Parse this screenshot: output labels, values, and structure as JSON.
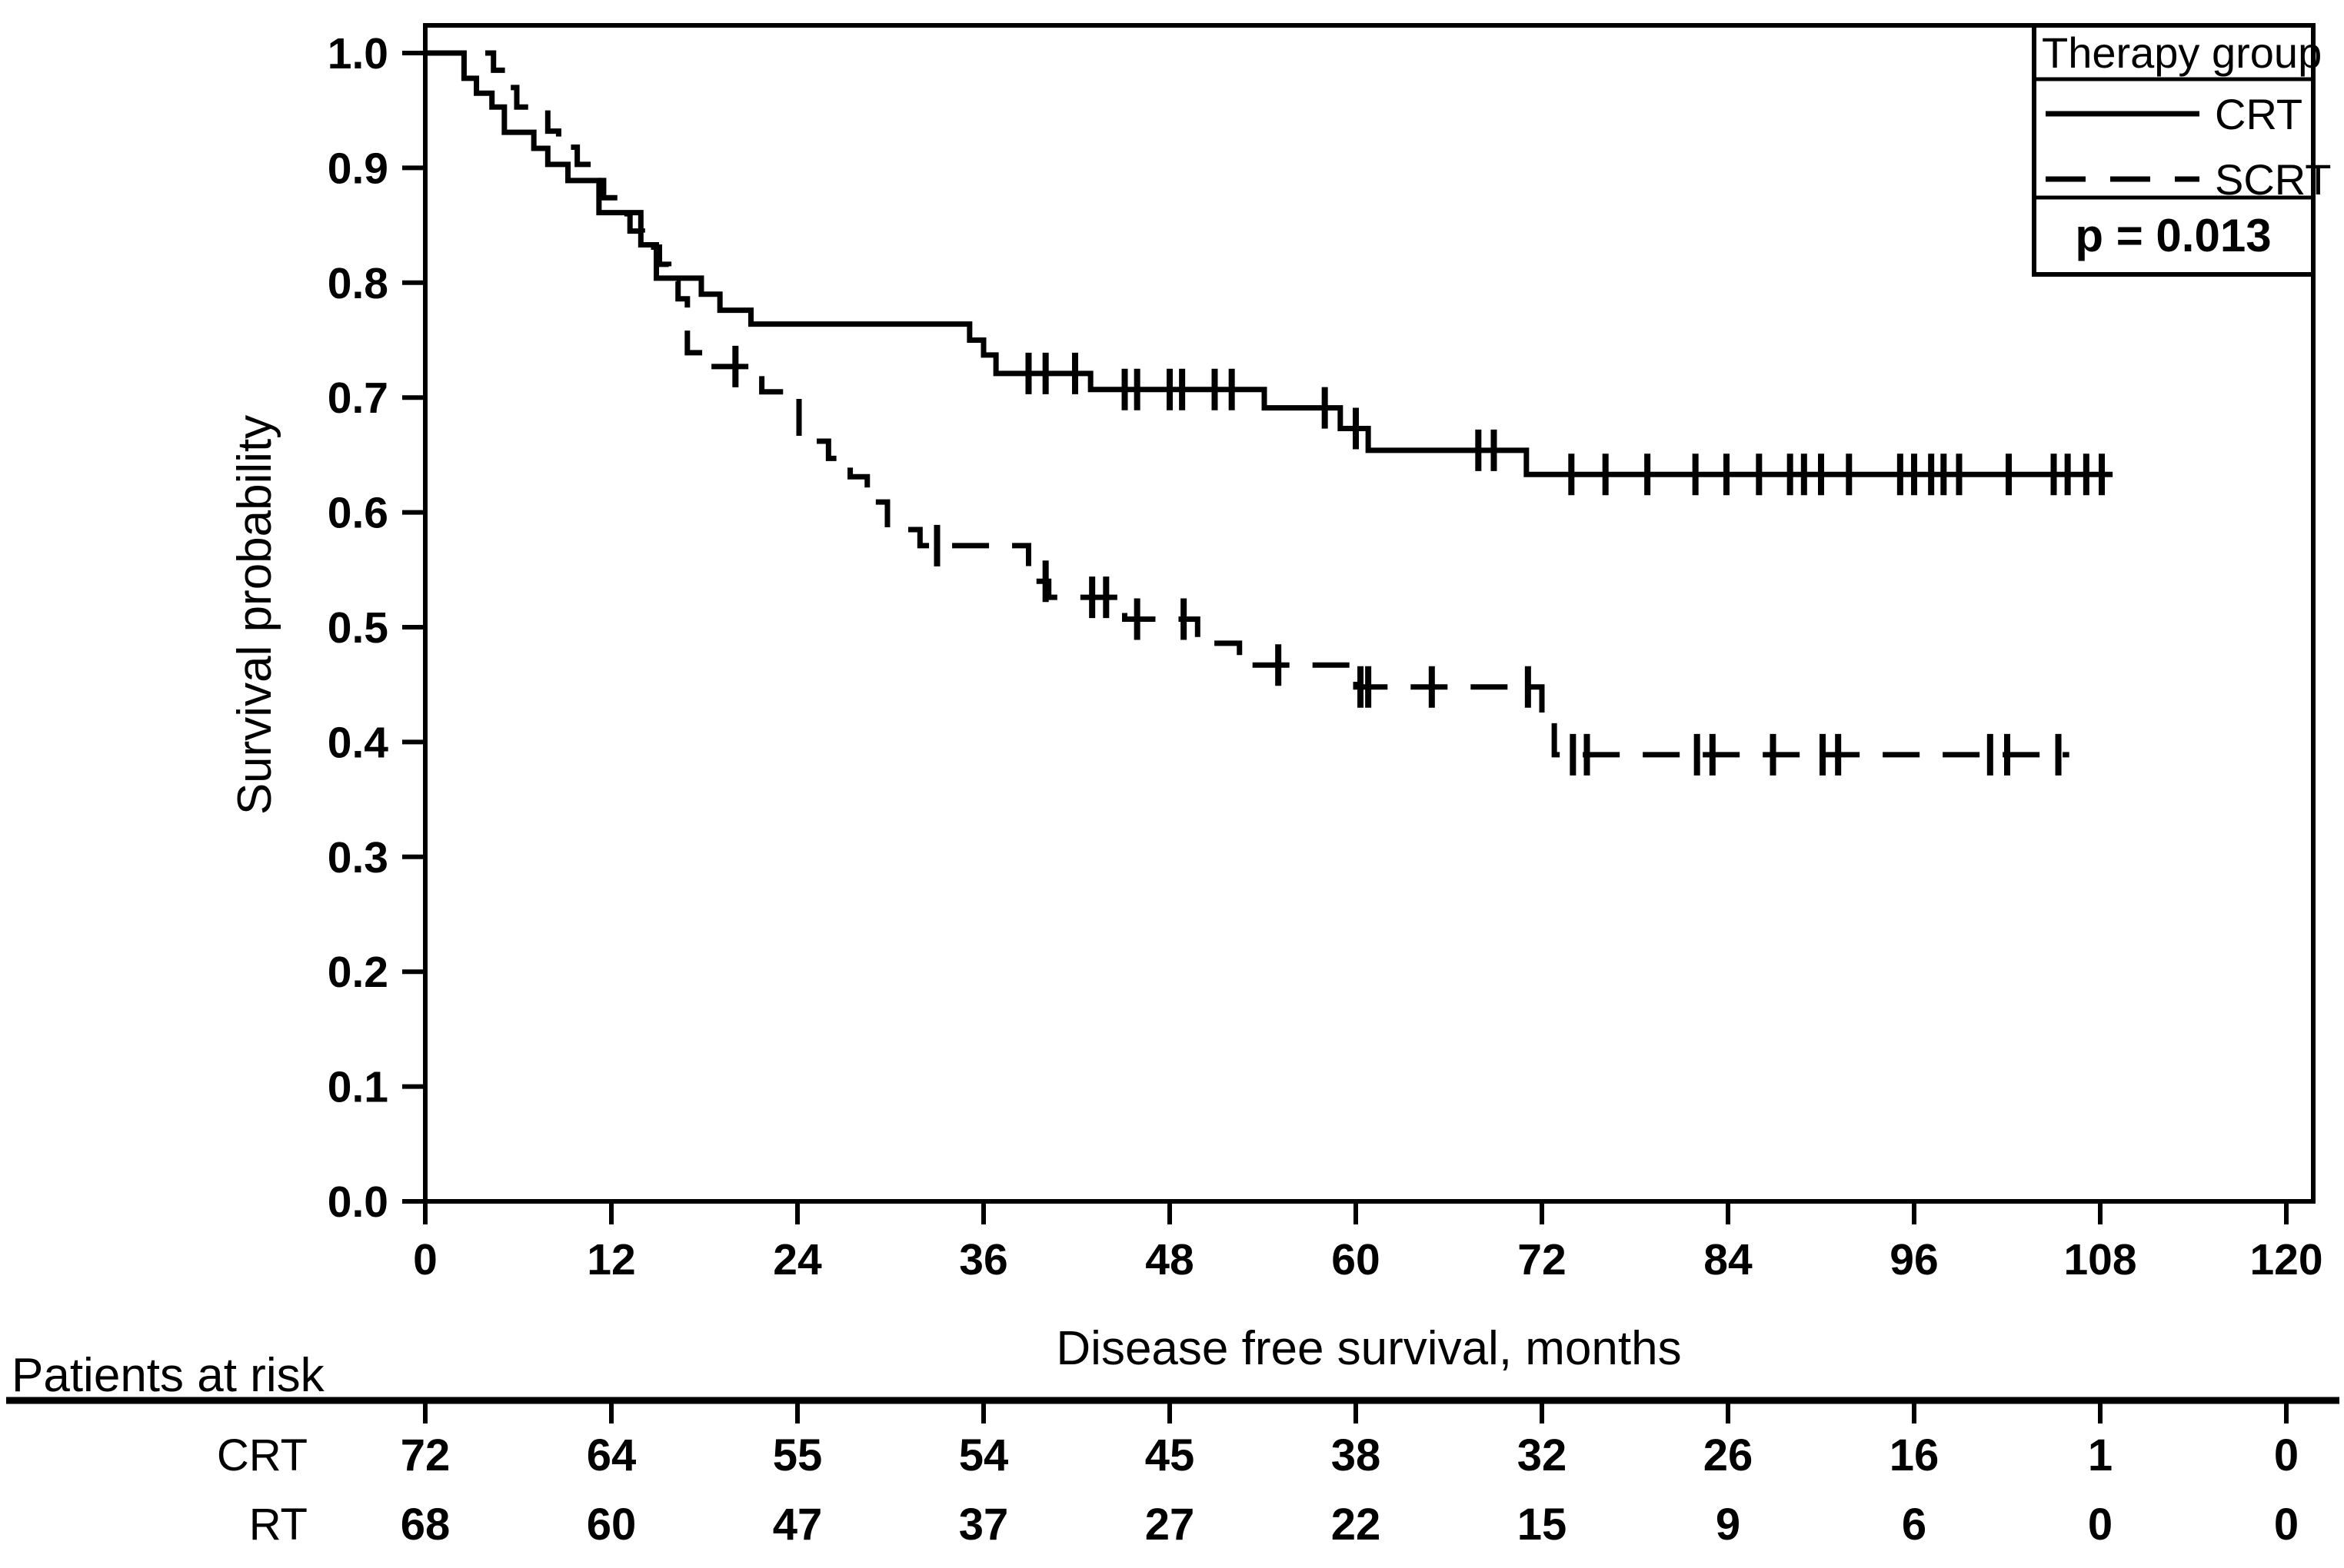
{
  "figure": {
    "background": "#ffffff",
    "foreground": "#000000",
    "y_axis_title": "Survival probability",
    "x_axis_title": "Disease free survival, months",
    "legend": {
      "title": "Therapy group",
      "entry_solid_label": "CRT",
      "entry_dashed_label": "SCRT",
      "p_value": "p = 0.013"
    },
    "risk_heading": "Patients at risk",
    "risk_row1_label": "CRT",
    "risk_row2_label": "RT"
  },
  "chart_data": {
    "type": "line",
    "subtype": "kaplan-meier-step",
    "title": "",
    "xlabel": "Disease free survival, months",
    "ylabel": "Survival probability",
    "xlim": [
      0,
      120
    ],
    "ylim": [
      0.0,
      1.0
    ],
    "x_ticks": [
      0,
      12,
      24,
      36,
      48,
      60,
      72,
      84,
      96,
      108,
      120
    ],
    "y_ticks": [
      1.0,
      0.9,
      0.8,
      0.7,
      0.6,
      0.5,
      0.4,
      0.3,
      0.2,
      0.1,
      0.0
    ],
    "grid": false,
    "legend_title": "Therapy group",
    "legend_position": "top-right",
    "p_value_text": "p = 0.013",
    "series": [
      {
        "name": "CRT",
        "style": "solid",
        "color": "#000000",
        "steps": [
          [
            0,
            1.0
          ],
          [
            2.5,
            0.978
          ],
          [
            3.3,
            0.965
          ],
          [
            4.3,
            0.953
          ],
          [
            5.1,
            0.931
          ],
          [
            7.0,
            0.917
          ],
          [
            7.9,
            0.903
          ],
          [
            9.2,
            0.889
          ],
          [
            11.2,
            0.861
          ],
          [
            13.9,
            0.833
          ],
          [
            14.9,
            0.804
          ],
          [
            17.8,
            0.79
          ],
          [
            19.0,
            0.776
          ],
          [
            21.0,
            0.764
          ],
          [
            35.1,
            0.75
          ],
          [
            36.0,
            0.737
          ],
          [
            36.8,
            0.721
          ],
          [
            42.9,
            0.707
          ],
          [
            54.1,
            0.691
          ],
          [
            59.0,
            0.673
          ],
          [
            60.8,
            0.654
          ],
          [
            71.0,
            0.633
          ]
        ],
        "end_time": 108.8,
        "censor_times": [
          38.9,
          40.0,
          41.9,
          45.1,
          45.9,
          48.0,
          48.8,
          50.9,
          52.0,
          58.0,
          60.0,
          67.9,
          68.9,
          73.9,
          76.1,
          78.8,
          81.9,
          83.9,
          86.0,
          88.0,
          88.9,
          90.0,
          91.8,
          95.1,
          96.0,
          97.1,
          97.9,
          98.9,
          102.1,
          105.0,
          105.9,
          107.1,
          108.1
        ]
      },
      {
        "name": "SCRT",
        "style": "dashed",
        "color": "#000000",
        "steps": [
          [
            0,
            1.0
          ],
          [
            4.4,
            0.985
          ],
          [
            5.3,
            0.97
          ],
          [
            5.9,
            0.953
          ],
          [
            7.9,
            0.932
          ],
          [
            8.6,
            0.918
          ],
          [
            9.8,
            0.903
          ],
          [
            10.8,
            0.889
          ],
          [
            11.5,
            0.874
          ],
          [
            12.4,
            0.86
          ],
          [
            13.2,
            0.845
          ],
          [
            14.0,
            0.831
          ],
          [
            15.1,
            0.816
          ],
          [
            15.7,
            0.801
          ],
          [
            16.3,
            0.786
          ],
          [
            16.9,
            0.739
          ],
          [
            18.3,
            0.727
          ],
          [
            21.7,
            0.705
          ],
          [
            24.1,
            0.662
          ],
          [
            26.0,
            0.647
          ],
          [
            27.4,
            0.631
          ],
          [
            28.5,
            0.609
          ],
          [
            29.8,
            0.585
          ],
          [
            31.9,
            0.571
          ],
          [
            38.9,
            0.54
          ],
          [
            40.2,
            0.526
          ],
          [
            45.1,
            0.507
          ],
          [
            49.8,
            0.486
          ],
          [
            52.5,
            0.467
          ],
          [
            60.0,
            0.448
          ],
          [
            72.0,
            0.42
          ],
          [
            72.8,
            0.389
          ]
        ],
        "end_time": 106.0,
        "censor_times": [
          20.0,
          33.0,
          40.0,
          43.0,
          43.9,
          45.9,
          48.9,
          55.0,
          60.3,
          60.8,
          64.9,
          71.1,
          74.0,
          74.9,
          82.0,
          83.0,
          86.9,
          90.1,
          91.1,
          100.9,
          102.0,
          105.3
        ]
      }
    ],
    "patients_at_risk": {
      "heading": "Patients at risk",
      "time_points": [
        0,
        12,
        24,
        36,
        48,
        60,
        72,
        84,
        96,
        108,
        120
      ],
      "rows": [
        {
          "label": "CRT",
          "counts": [
            72,
            64,
            55,
            54,
            45,
            38,
            32,
            26,
            16,
            1,
            0
          ]
        },
        {
          "label": "RT",
          "counts": [
            68,
            60,
            47,
            37,
            27,
            22,
            15,
            9,
            6,
            0,
            0
          ]
        }
      ]
    }
  }
}
